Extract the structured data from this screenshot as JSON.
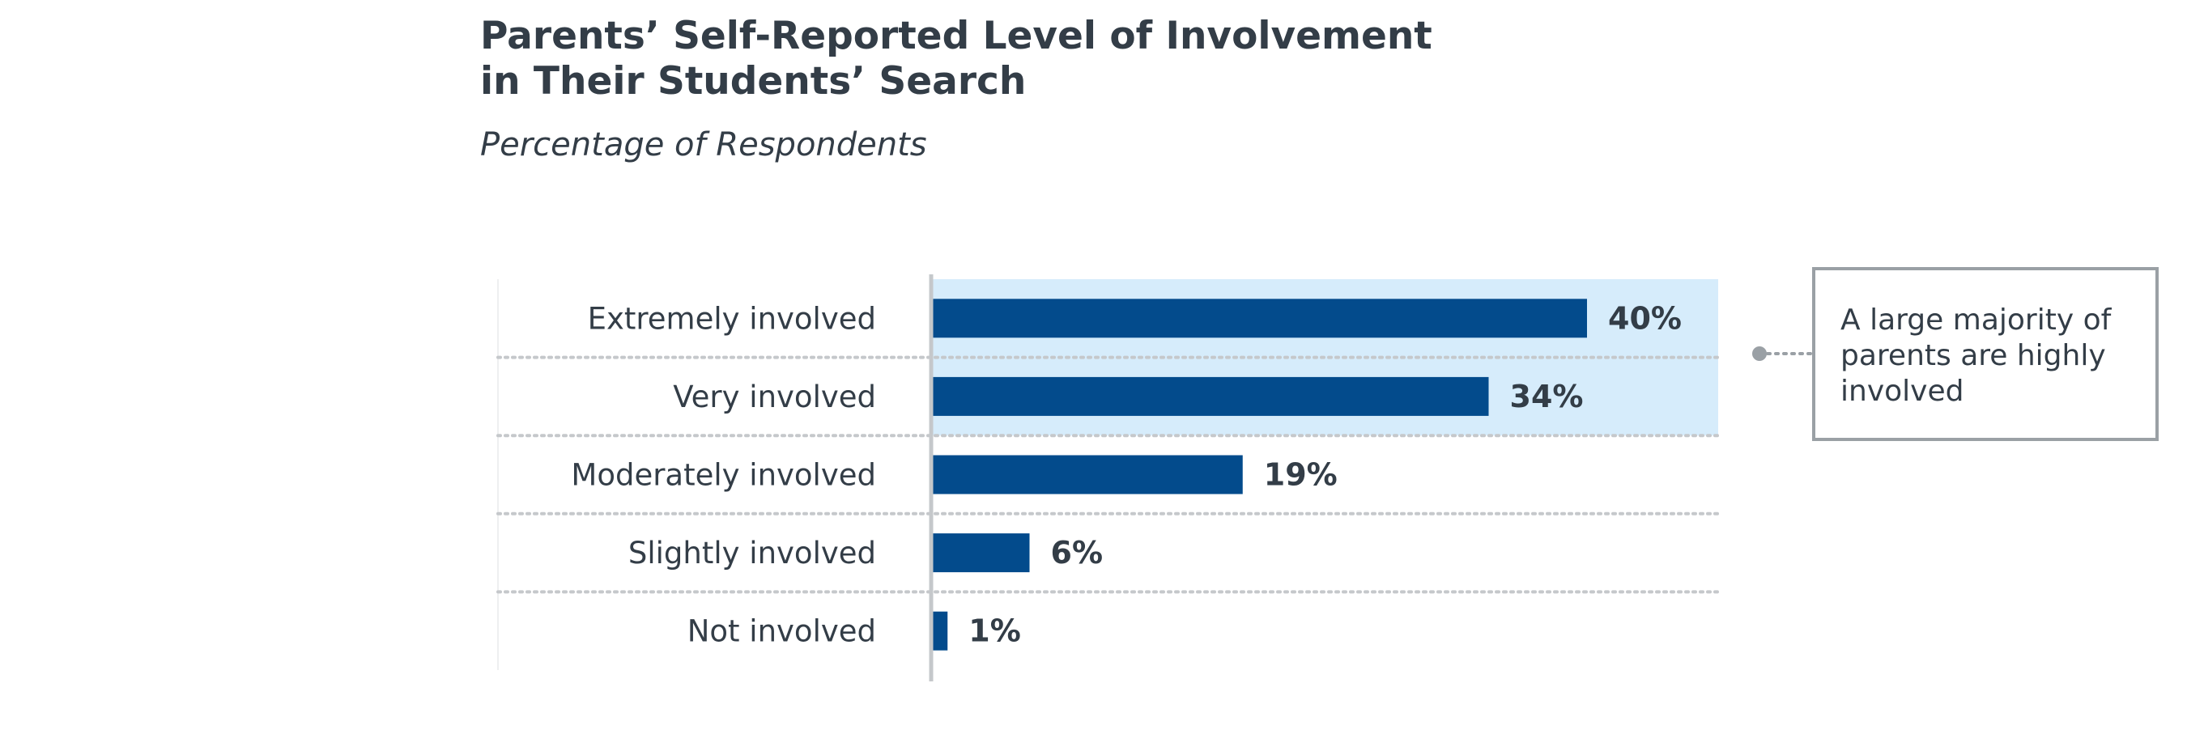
{
  "chart_data": {
    "type": "bar",
    "orientation": "horizontal",
    "title_lines": [
      "Parents’ Self-Reported Level of Involvement",
      "in Their Students’ Search"
    ],
    "subtitle": "Percentage of Respondents",
    "categories": [
      "Extremely involved",
      "Very involved",
      "Moderately involved",
      "Slightly involved",
      "Not involved"
    ],
    "values": [
      40,
      34,
      19,
      6,
      1
    ],
    "value_labels": [
      "40%",
      "34%",
      "19%",
      "6%",
      "1%"
    ],
    "xlim": [
      0,
      48
    ],
    "grid": false,
    "legend": "none",
    "highlight": {
      "categories": [
        "Extremely involved",
        "Very involved"
      ],
      "color": "#d6ecfb"
    },
    "callout": {
      "lines": [
        "A large majority of",
        "parents are highly",
        "involved"
      ],
      "placement": "right"
    }
  },
  "colors": {
    "bar": "#034b8c",
    "text": "#333d47",
    "separator": "#c5c8cb",
    "axis": "#c5c8cb",
    "callout_border": "#9aa0a5",
    "connector": "#9aa0a5"
  }
}
